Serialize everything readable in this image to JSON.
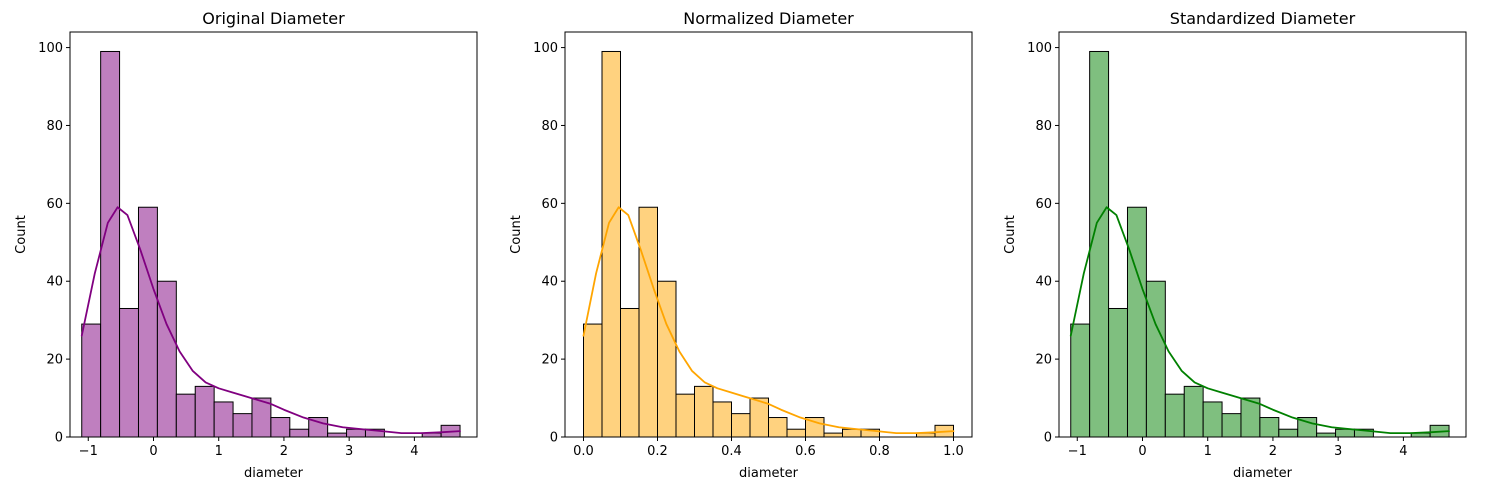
{
  "chart_data": [
    {
      "type": "bar",
      "title": "Original Diameter",
      "xlabel": "diameter",
      "ylabel": "Count",
      "xlim": [
        -1.28,
        4.96
      ],
      "ylim": [
        0,
        104
      ],
      "xticks": [
        -1,
        0,
        1,
        2,
        3,
        4
      ],
      "xtick_labels": [
        "−1",
        "0",
        "1",
        "2",
        "3",
        "4"
      ],
      "yticks": [
        0,
        20,
        40,
        60,
        80,
        100
      ],
      "ytick_labels": [
        "0",
        "20",
        "40",
        "60",
        "80",
        "100"
      ],
      "bin_edges": [
        -1.1,
        -0.81,
        -0.52,
        -0.23,
        0.06,
        0.35,
        0.64,
        0.93,
        1.22,
        1.51,
        1.8,
        2.09,
        2.38,
        2.67,
        2.96,
        3.25,
        3.54,
        3.83,
        4.12,
        4.41,
        4.7
      ],
      "values": [
        29,
        99,
        33,
        59,
        40,
        11,
        13,
        9,
        6,
        10,
        5,
        2,
        5,
        1,
        2,
        2,
        0,
        0,
        1,
        3
      ],
      "kde": {
        "x": [
          -1.1,
          -0.9,
          -0.7,
          -0.55,
          -0.4,
          -0.2,
          0.0,
          0.2,
          0.4,
          0.6,
          0.8,
          1.0,
          1.2,
          1.4,
          1.6,
          1.8,
          2.0,
          2.3,
          2.6,
          2.9,
          3.2,
          3.5,
          3.8,
          4.1,
          4.4,
          4.7
        ],
        "y": [
          26,
          42,
          55,
          59,
          57,
          48,
          38,
          29,
          22,
          17,
          14,
          12.5,
          11.5,
          10.5,
          9.5,
          8.5,
          7,
          5,
          3.5,
          2.5,
          2,
          1.5,
          1,
          1,
          1.2,
          1.5
        ]
      },
      "bar_color": "#bf7fbf",
      "line_color": "#800080",
      "grid": false
    },
    {
      "type": "bar",
      "title": "Normalized Diameter",
      "xlabel": "diameter",
      "ylabel": "Count",
      "xlim": [
        -0.05,
        1.05
      ],
      "ylim": [
        0,
        104
      ],
      "xticks": [
        0.0,
        0.2,
        0.4,
        0.6,
        0.8,
        1.0
      ],
      "xtick_labels": [
        "0.0",
        "0.2",
        "0.4",
        "0.6",
        "0.8",
        "1.0"
      ],
      "yticks": [
        0,
        20,
        40,
        60,
        80,
        100
      ],
      "ytick_labels": [
        "0",
        "20",
        "40",
        "60",
        "80",
        "100"
      ],
      "bin_edges": [
        0.0,
        0.05,
        0.1,
        0.15,
        0.2,
        0.25,
        0.3,
        0.35,
        0.4,
        0.45,
        0.5,
        0.55,
        0.6,
        0.65,
        0.7,
        0.75,
        0.8,
        0.85,
        0.9,
        0.95,
        1.0
      ],
      "values": [
        29,
        99,
        33,
        59,
        40,
        11,
        13,
        9,
        6,
        10,
        5,
        2,
        5,
        1,
        2,
        2,
        0,
        0,
        1,
        3
      ],
      "kde": {
        "x": [
          0.0,
          0.034,
          0.069,
          0.095,
          0.121,
          0.155,
          0.19,
          0.224,
          0.259,
          0.293,
          0.328,
          0.362,
          0.397,
          0.431,
          0.466,
          0.5,
          0.534,
          0.586,
          0.638,
          0.69,
          0.741,
          0.793,
          0.845,
          0.897,
          0.948,
          1.0
        ],
        "y": [
          26,
          42,
          55,
          59,
          57,
          48,
          38,
          29,
          22,
          17,
          14,
          12.5,
          11.5,
          10.5,
          9.5,
          8.5,
          7,
          5,
          3.5,
          2.5,
          2,
          1.5,
          1,
          1,
          1.2,
          1.5
        ]
      },
      "bar_color": "#ffd27f",
      "line_color": "#ffa500",
      "grid": false
    },
    {
      "type": "bar",
      "title": "Standardized Diameter",
      "xlabel": "diameter",
      "ylabel": "Count",
      "xlim": [
        -1.28,
        4.96
      ],
      "ylim": [
        0,
        104
      ],
      "xticks": [
        -1,
        0,
        1,
        2,
        3,
        4
      ],
      "xtick_labels": [
        "−1",
        "0",
        "1",
        "2",
        "3",
        "4"
      ],
      "yticks": [
        0,
        20,
        40,
        60,
        80,
        100
      ],
      "ytick_labels": [
        "0",
        "20",
        "40",
        "60",
        "80",
        "100"
      ],
      "bin_edges": [
        -1.1,
        -0.81,
        -0.52,
        -0.23,
        0.06,
        0.35,
        0.64,
        0.93,
        1.22,
        1.51,
        1.8,
        2.09,
        2.38,
        2.67,
        2.96,
        3.25,
        3.54,
        3.83,
        4.12,
        4.41,
        4.7
      ],
      "values": [
        29,
        99,
        33,
        59,
        40,
        11,
        13,
        9,
        6,
        10,
        5,
        2,
        5,
        1,
        2,
        2,
        0,
        0,
        1,
        3
      ],
      "kde": {
        "x": [
          -1.1,
          -0.9,
          -0.7,
          -0.55,
          -0.4,
          -0.2,
          0.0,
          0.2,
          0.4,
          0.6,
          0.8,
          1.0,
          1.2,
          1.4,
          1.6,
          1.8,
          2.0,
          2.3,
          2.6,
          2.9,
          3.2,
          3.5,
          3.8,
          4.1,
          4.4,
          4.7
        ],
        "y": [
          26,
          42,
          55,
          59,
          57,
          48,
          38,
          29,
          22,
          17,
          14,
          12.5,
          11.5,
          10.5,
          9.5,
          8.5,
          7,
          5,
          3.5,
          2.5,
          2,
          1.5,
          1,
          1,
          1.2,
          1.5
        ]
      },
      "bar_color": "#7fbf7f",
      "line_color": "#008000",
      "grid": false
    }
  ]
}
